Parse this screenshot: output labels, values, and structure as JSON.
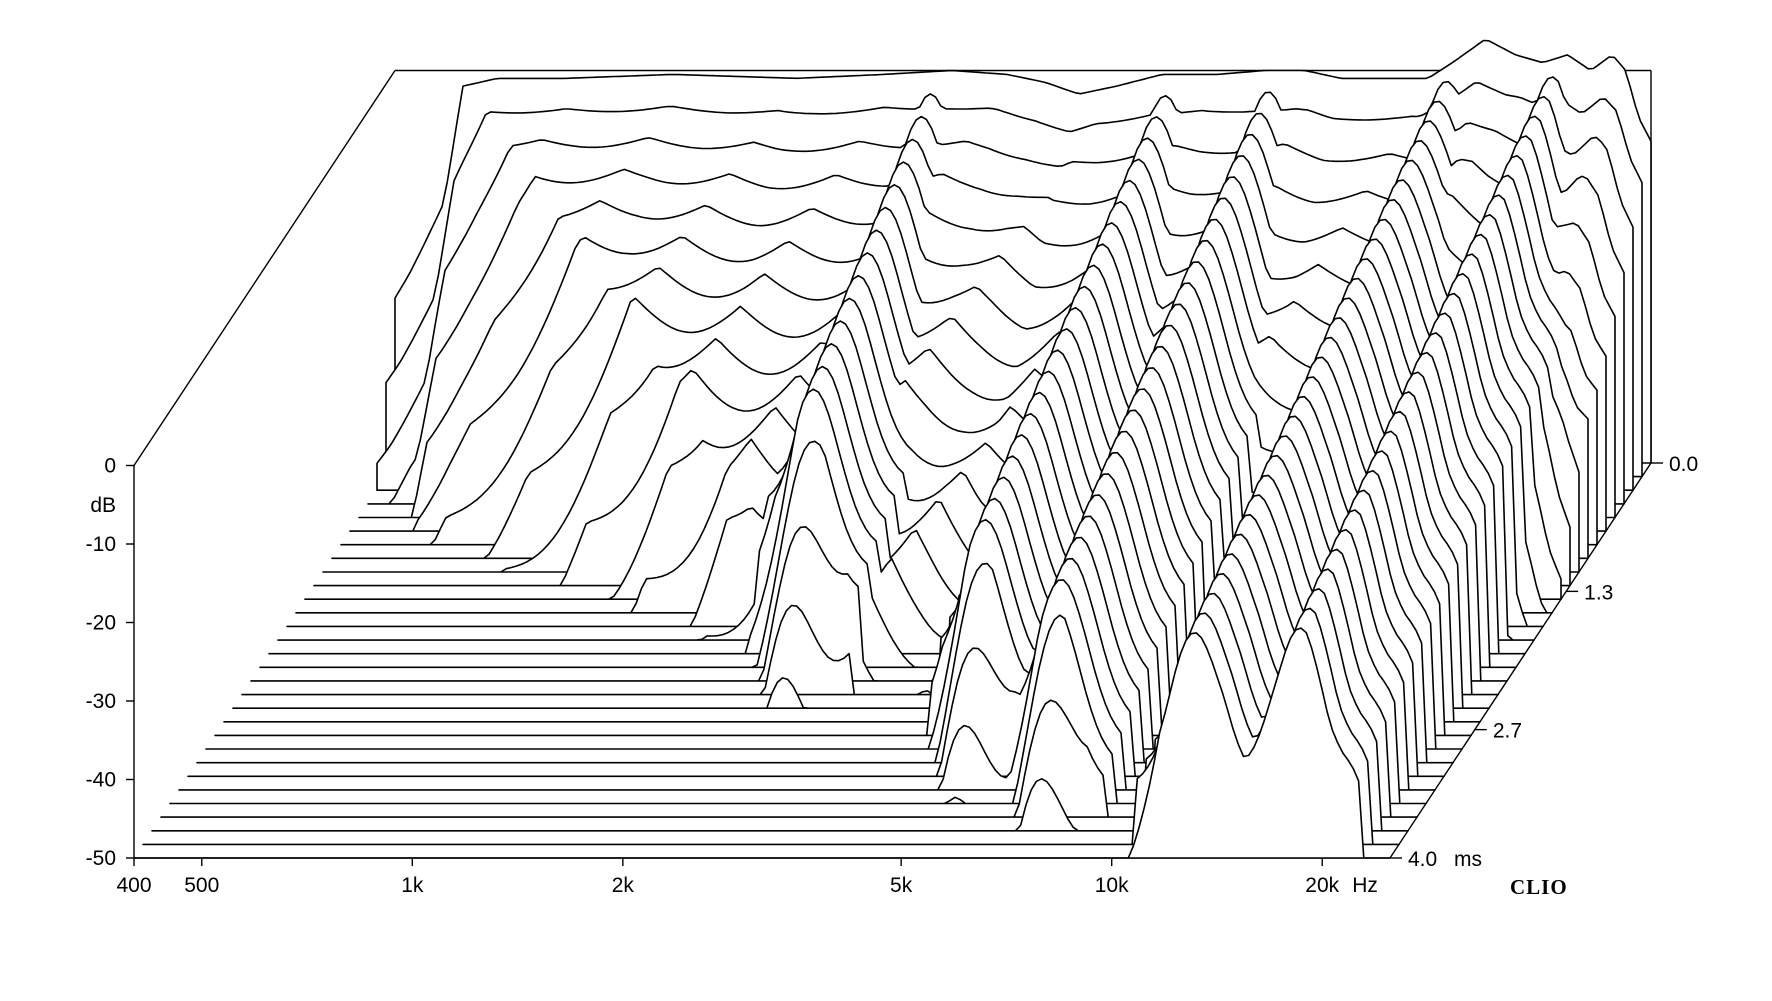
{
  "chart_data": {
    "type": "waterfall",
    "x_axis": {
      "scale": "log",
      "range_hz": [
        400,
        25000
      ],
      "tick_labels": [
        {
          "value": 400,
          "label": "400"
        },
        {
          "value": 500,
          "label": "500"
        },
        {
          "value": 1000,
          "label": "1k"
        },
        {
          "value": 2000,
          "label": "2k"
        },
        {
          "value": 5000,
          "label": "5k"
        },
        {
          "value": 10000,
          "label": "10k"
        },
        {
          "value": 20000,
          "label": "20k"
        }
      ],
      "unit": "Hz"
    },
    "y_axis": {
      "range_db": [
        -50,
        0
      ],
      "tick_labels": [
        {
          "value": 0,
          "label": "0"
        },
        {
          "value": -10,
          "label": "-10"
        },
        {
          "value": -20,
          "label": "-20"
        },
        {
          "value": -30,
          "label": "-30"
        },
        {
          "value": -40,
          "label": "-40"
        },
        {
          "value": -50,
          "label": "-50"
        }
      ],
      "unit": "dB"
    },
    "time_axis": {
      "range_ms": [
        0,
        4.0
      ],
      "tick_labels": [
        {
          "value": 0.0,
          "label": "0.0"
        },
        {
          "value": 1.3,
          "label": "1.3"
        },
        {
          "value": 2.7,
          "label": "2.7"
        },
        {
          "value": 4.0,
          "label": "4.0"
        }
      ],
      "unit": "ms",
      "slices": 30
    },
    "brand": "CLIO",
    "response_db_at_0ms": [
      {
        "f": 420,
        "db": -13
      },
      {
        "f": 470,
        "db": -12
      },
      {
        "f": 500,
        "db": -2
      },
      {
        "f": 560,
        "db": -1
      },
      {
        "f": 700,
        "db": -1
      },
      {
        "f": 1000,
        "db": -0.5
      },
      {
        "f": 1500,
        "db": -1
      },
      {
        "f": 2000,
        "db": -0.5
      },
      {
        "f": 2500,
        "db": 0
      },
      {
        "f": 3000,
        "db": -0.5
      },
      {
        "f": 3400,
        "db": -1.5
      },
      {
        "f": 3800,
        "db": -3
      },
      {
        "f": 4300,
        "db": -2
      },
      {
        "f": 5000,
        "db": -0.5
      },
      {
        "f": 6000,
        "db": -0.5
      },
      {
        "f": 7000,
        "db": 0
      },
      {
        "f": 8000,
        "db": 0
      },
      {
        "f": 9000,
        "db": -1
      },
      {
        "f": 10000,
        "db": -1
      },
      {
        "f": 12000,
        "db": -1
      },
      {
        "f": 13000,
        "db": 1
      },
      {
        "f": 14500,
        "db": 4
      },
      {
        "f": 16000,
        "db": 2
      },
      {
        "f": 17500,
        "db": 1
      },
      {
        "f": 19000,
        "db": 2
      },
      {
        "f": 20500,
        "db": 0
      },
      {
        "f": 22000,
        "db": 2
      },
      {
        "f": 23000,
        "db": 0
      },
      {
        "f": 24000,
        "db": -6
      },
      {
        "f": 25000,
        "db": -9
      }
    ],
    "resonances": [
      {
        "f": 2400,
        "decay_db_per_ms": 6
      },
      {
        "f": 5200,
        "decay_db_per_ms": 5
      },
      {
        "f": 7300,
        "decay_db_per_ms": 5
      },
      {
        "f": 13000,
        "decay_db_per_ms": 4
      },
      {
        "f": 18500,
        "decay_db_per_ms": 4
      }
    ]
  }
}
